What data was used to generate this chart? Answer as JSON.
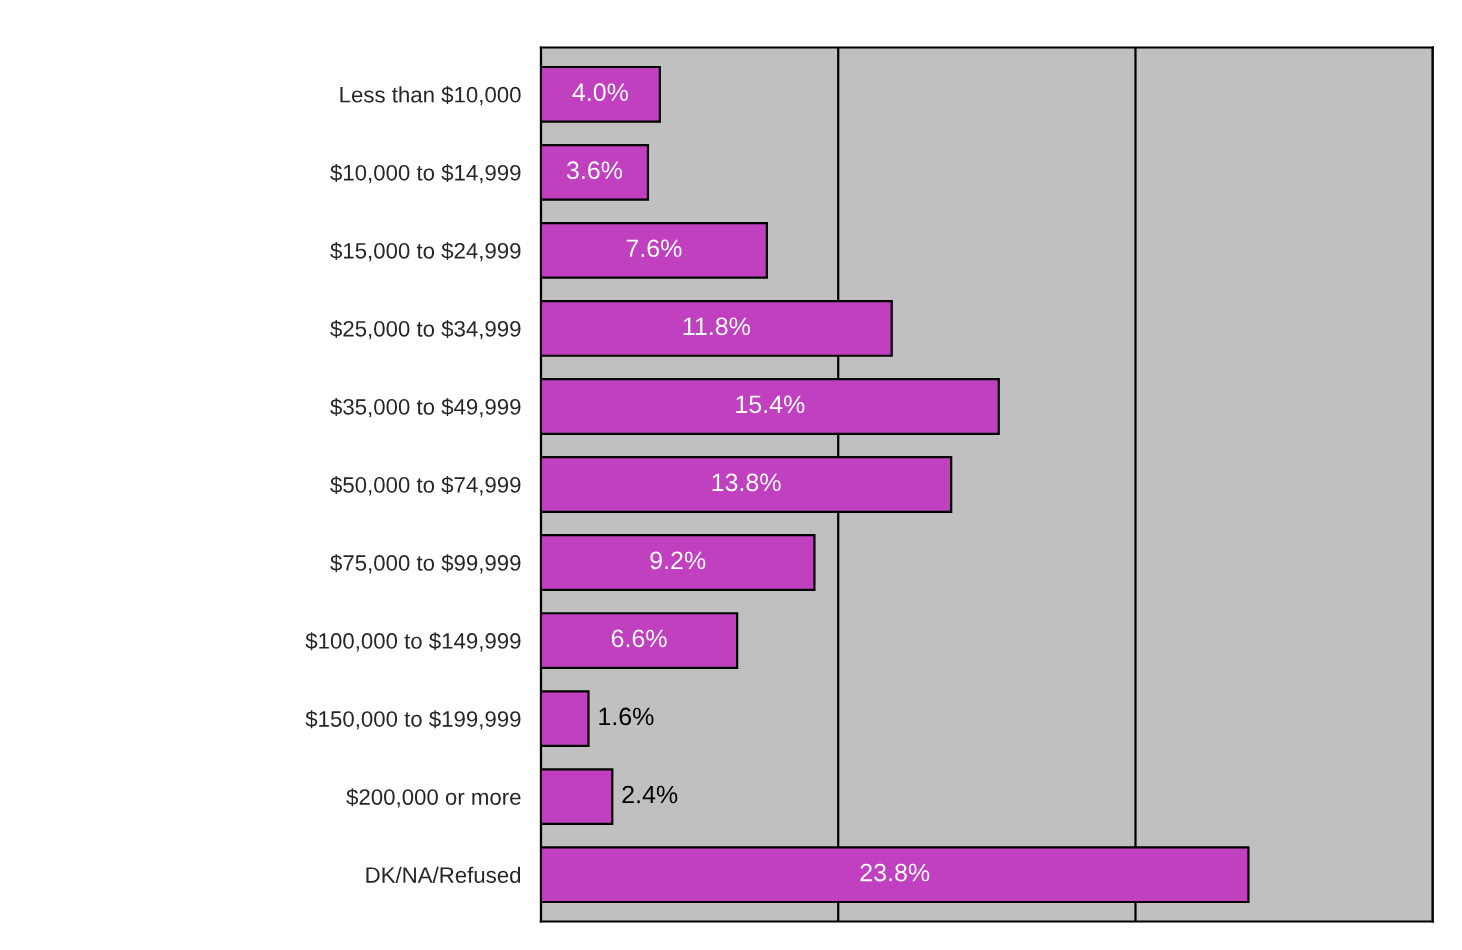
{
  "chart_data": {
    "type": "bar",
    "orientation": "horizontal",
    "categories": [
      "Less than $10,000",
      "$10,000 to $14,999",
      "$15,000 to $24,999",
      "$25,000 to $34,999",
      "$35,000 to $49,999",
      "$50,000 to $74,999",
      "$75,000 to $99,999",
      "$100,000 to $149,999",
      "$150,000 to $199,999",
      "$200,000 or more",
      "DK/NA/Refused"
    ],
    "values": [
      4.0,
      3.6,
      7.6,
      11.8,
      15.4,
      13.8,
      9.2,
      6.6,
      1.6,
      2.4,
      23.8
    ],
    "value_labels": [
      "4.0%",
      "3.6%",
      "7.6%",
      "11.8%",
      "15.4%",
      "13.8%",
      "9.2%",
      "6.6%",
      "1.6%",
      "2.4%",
      "23.8%"
    ],
    "color": "#c040c0",
    "xlim": [
      0,
      30
    ],
    "xticks": [
      {
        "value": 0,
        "label": null
      },
      {
        "value": 10,
        "label": null
      },
      {
        "value": 20,
        "label": null
      },
      {
        "value": 30,
        "label": null
      }
    ],
    "grid": "x"
  }
}
